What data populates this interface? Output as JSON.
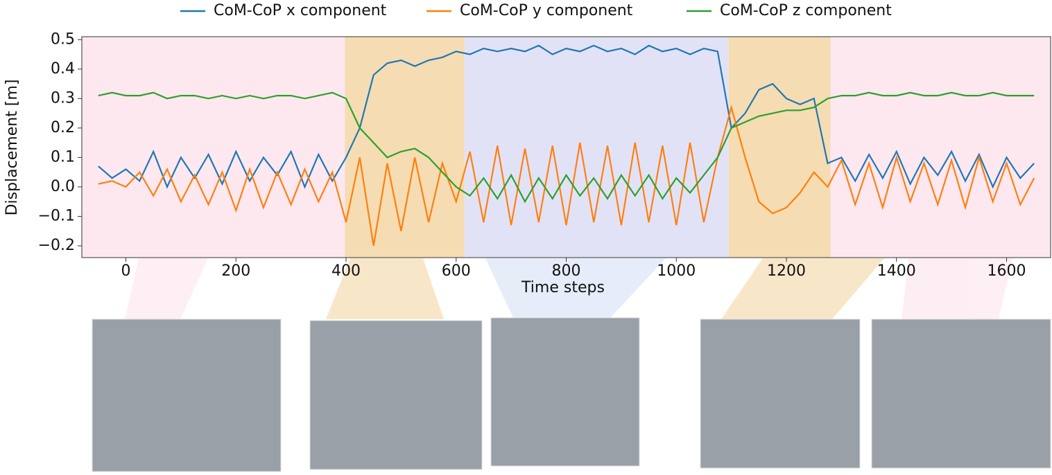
{
  "chart_data": {
    "type": "line",
    "xlabel": "Time steps",
    "ylabel": "Displacement [m]",
    "x": [
      -50,
      -25,
      0,
      25,
      50,
      75,
      100,
      125,
      150,
      175,
      200,
      225,
      250,
      275,
      300,
      325,
      350,
      375,
      400,
      425,
      450,
      475,
      500,
      525,
      550,
      575,
      600,
      625,
      650,
      675,
      700,
      725,
      750,
      775,
      800,
      825,
      850,
      875,
      900,
      925,
      950,
      975,
      1000,
      1025,
      1050,
      1075,
      1100,
      1125,
      1150,
      1175,
      1200,
      1225,
      1250,
      1275,
      1300,
      1325,
      1350,
      1375,
      1400,
      1425,
      1450,
      1475,
      1500,
      1525,
      1550,
      1575,
      1600,
      1625,
      1650
    ],
    "series": [
      {
        "name": "CoM-CoP x component",
        "color": "#1f77b4",
        "values": [
          0.07,
          0.03,
          0.06,
          0.02,
          0.12,
          0.0,
          0.1,
          0.03,
          0.11,
          0.01,
          0.12,
          0.02,
          0.1,
          0.04,
          0.12,
          0.0,
          0.11,
          0.02,
          0.1,
          0.2,
          0.38,
          0.42,
          0.43,
          0.41,
          0.43,
          0.44,
          0.46,
          0.45,
          0.47,
          0.46,
          0.47,
          0.46,
          0.48,
          0.45,
          0.47,
          0.46,
          0.48,
          0.46,
          0.47,
          0.45,
          0.48,
          0.46,
          0.47,
          0.45,
          0.47,
          0.46,
          0.2,
          0.25,
          0.33,
          0.35,
          0.3,
          0.28,
          0.3,
          0.08,
          0.1,
          0.02,
          0.11,
          0.03,
          0.12,
          0.01,
          0.1,
          0.04,
          0.12,
          0.02,
          0.11,
          0.0,
          0.1,
          0.03,
          0.08
        ]
      },
      {
        "name": "CoM-CoP y component",
        "color": "#ff7f0e",
        "values": [
          0.01,
          0.02,
          0.0,
          0.05,
          -0.03,
          0.06,
          -0.05,
          0.04,
          -0.06,
          0.05,
          -0.08,
          0.06,
          -0.07,
          0.05,
          -0.06,
          0.06,
          -0.05,
          0.05,
          -0.12,
          0.1,
          -0.2,
          0.08,
          -0.15,
          0.1,
          -0.12,
          0.08,
          -0.05,
          0.12,
          -0.12,
          0.14,
          -0.13,
          0.13,
          -0.12,
          0.14,
          -0.13,
          0.15,
          -0.12,
          0.14,
          -0.13,
          0.15,
          -0.12,
          0.14,
          -0.13,
          0.15,
          -0.12,
          0.1,
          0.27,
          0.1,
          -0.05,
          -0.09,
          -0.07,
          -0.02,
          0.05,
          0.0,
          0.09,
          -0.06,
          0.08,
          -0.07,
          0.1,
          -0.05,
          0.08,
          -0.06,
          0.09,
          -0.07,
          0.1,
          -0.05,
          0.08,
          -0.06,
          0.03
        ]
      },
      {
        "name": "CoM-CoP z component",
        "color": "#2ca02c",
        "values": [
          0.31,
          0.32,
          0.31,
          0.31,
          0.32,
          0.3,
          0.31,
          0.31,
          0.3,
          0.31,
          0.3,
          0.31,
          0.3,
          0.31,
          0.31,
          0.3,
          0.31,
          0.32,
          0.3,
          0.2,
          0.15,
          0.1,
          0.12,
          0.13,
          0.1,
          0.05,
          0.0,
          -0.03,
          0.03,
          -0.04,
          0.04,
          -0.05,
          0.03,
          -0.04,
          0.04,
          -0.03,
          0.03,
          -0.04,
          0.04,
          -0.03,
          0.04,
          -0.04,
          0.03,
          -0.02,
          0.04,
          0.1,
          0.2,
          0.22,
          0.24,
          0.25,
          0.26,
          0.26,
          0.27,
          0.3,
          0.31,
          0.31,
          0.32,
          0.31,
          0.31,
          0.32,
          0.31,
          0.31,
          0.32,
          0.31,
          0.31,
          0.32,
          0.31,
          0.31,
          0.31
        ]
      }
    ],
    "regions": [
      {
        "start": -80,
        "end": 398,
        "color": "#fde8f0"
      },
      {
        "start": 398,
        "end": 615,
        "color": "#f5dcb2"
      },
      {
        "start": 615,
        "end": 1095,
        "color": "#e2e2f6"
      },
      {
        "start": 1095,
        "end": 1280,
        "color": "#f5dcb2"
      },
      {
        "start": 1280,
        "end": 1680,
        "color": "#fde8f0"
      }
    ],
    "xlim": [
      -80,
      1680
    ],
    "ylim": [
      -0.24,
      0.51
    ],
    "xticks": [
      0,
      200,
      400,
      600,
      800,
      1000,
      1200,
      1400,
      1600
    ],
    "yticks": [
      {
        "value": -0.2,
        "label": "−0.2"
      },
      {
        "value": -0.1,
        "label": "−0.1"
      },
      {
        "value": 0,
        "label": "0.0"
      },
      0.1,
      0.2,
      0.3,
      0.4,
      0.5
    ],
    "legend": "top"
  }
}
